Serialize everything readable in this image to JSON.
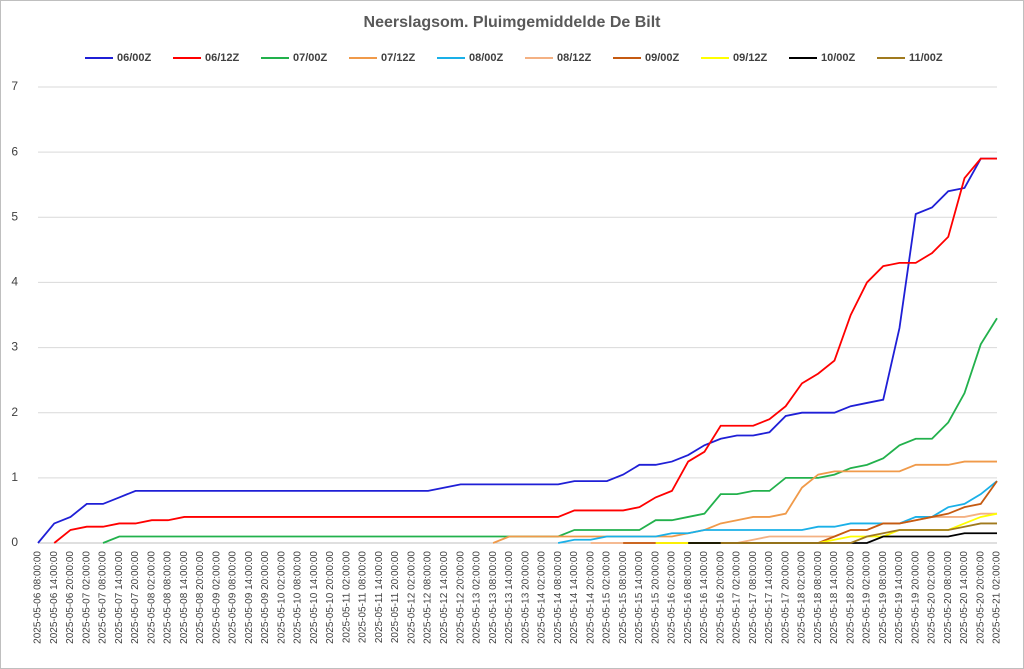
{
  "chart_data": {
    "type": "line",
    "title": "Neerslagsom. Pluimgemiddelde De Bilt",
    "categories": [
      "2025-05-06 08:00:00",
      "2025-05-06 14:00:00",
      "2025-05-06 20:00:00",
      "2025-05-07 02:00:00",
      "2025-05-07 08:00:00",
      "2025-05-07 14:00:00",
      "2025-05-07 20:00:00",
      "2025-05-08 02:00:00",
      "2025-05-08 08:00:00",
      "2025-05-08 14:00:00",
      "2025-05-08 20:00:00",
      "2025-05-09 02:00:00",
      "2025-05-09 08:00:00",
      "2025-05-09 14:00:00",
      "2025-05-09 20:00:00",
      "2025-05-10 02:00:00",
      "2025-05-10 08:00:00",
      "2025-05-10 14:00:00",
      "2025-05-10 20:00:00",
      "2025-05-11 02:00:00",
      "2025-05-11 08:00:00",
      "2025-05-11 14:00:00",
      "2025-05-11 20:00:00",
      "2025-05-12 02:00:00",
      "2025-05-12 08:00:00",
      "2025-05-12 14:00:00",
      "2025-05-12 20:00:00",
      "2025-05-13 02:00:00",
      "2025-05-13 08:00:00",
      "2025-05-13 14:00:00",
      "2025-05-13 20:00:00",
      "2025-05-14 02:00:00",
      "2025-05-14 08:00:00",
      "2025-05-14 14:00:00",
      "2025-05-14 20:00:00",
      "2025-05-15 02:00:00",
      "2025-05-15 08:00:00",
      "2025-05-15 14:00:00",
      "2025-05-15 20:00:00",
      "2025-05-16 02:00:00",
      "2025-05-16 08:00:00",
      "2025-05-16 14:00:00",
      "2025-05-16 20:00:00",
      "2025-05-17 02:00:00",
      "2025-05-17 08:00:00",
      "2025-05-17 14:00:00",
      "2025-05-17 20:00:00",
      "2025-05-18 02:00:00",
      "2025-05-18 08:00:00",
      "2025-05-18 14:00:00",
      "2025-05-18 20:00:00",
      "2025-05-19 02:00:00",
      "2025-05-19 08:00:00",
      "2025-05-19 14:00:00",
      "2025-05-19 20:00:00",
      "2025-05-20 02:00:00",
      "2025-05-20 08:00:00",
      "2025-05-20 14:00:00",
      "2025-05-20 20:00:00",
      "2025-05-21 02:00:00"
    ],
    "series": [
      {
        "name": "06/00Z",
        "color": "#1f1fd6",
        "values": [
          0,
          0.3,
          0.4,
          0.6,
          0.6,
          0.7,
          0.8,
          0.8,
          0.8,
          0.8,
          0.8,
          0.8,
          0.8,
          0.8,
          0.8,
          0.8,
          0.8,
          0.8,
          0.8,
          0.8,
          0.8,
          0.8,
          0.8,
          0.8,
          0.8,
          0.85,
          0.9,
          0.9,
          0.9,
          0.9,
          0.9,
          0.9,
          0.9,
          0.95,
          0.95,
          0.95,
          1.05,
          1.2,
          1.2,
          1.25,
          1.35,
          1.5,
          1.6,
          1.65,
          1.65,
          1.7,
          1.95,
          2.0,
          2.0,
          2.0,
          2.1,
          2.15,
          2.2,
          3.3,
          5.05,
          5.15,
          5.4,
          5.45,
          5.9,
          5.9
        ]
      },
      {
        "name": "06/12Z",
        "color": "#ff0000",
        "values": [
          null,
          0,
          0.2,
          0.25,
          0.25,
          0.3,
          0.3,
          0.35,
          0.35,
          0.4,
          0.4,
          0.4,
          0.4,
          0.4,
          0.4,
          0.4,
          0.4,
          0.4,
          0.4,
          0.4,
          0.4,
          0.4,
          0.4,
          0.4,
          0.4,
          0.4,
          0.4,
          0.4,
          0.4,
          0.4,
          0.4,
          0.4,
          0.4,
          0.5,
          0.5,
          0.5,
          0.5,
          0.55,
          0.7,
          0.8,
          1.25,
          1.4,
          1.8,
          1.8,
          1.8,
          1.9,
          2.1,
          2.45,
          2.6,
          2.8,
          3.5,
          4.0,
          4.25,
          4.3,
          4.3,
          4.45,
          4.7,
          5.6,
          5.9,
          5.9
        ]
      },
      {
        "name": "07/00Z",
        "color": "#22b14c",
        "values": [
          null,
          null,
          null,
          null,
          0,
          0.1,
          0.1,
          0.1,
          0.1,
          0.1,
          0.1,
          0.1,
          0.1,
          0.1,
          0.1,
          0.1,
          0.1,
          0.1,
          0.1,
          0.1,
          0.1,
          0.1,
          0.1,
          0.1,
          0.1,
          0.1,
          0.1,
          0.1,
          0.1,
          0.1,
          0.1,
          0.1,
          0.1,
          0.2,
          0.2,
          0.2,
          0.2,
          0.2,
          0.35,
          0.35,
          0.4,
          0.45,
          0.75,
          0.75,
          0.8,
          0.8,
          1.0,
          1.0,
          1.0,
          1.05,
          1.15,
          1.2,
          1.3,
          1.5,
          1.6,
          1.6,
          1.85,
          2.3,
          3.05,
          3.45
        ]
      },
      {
        "name": "07/12Z",
        "color": "#f09a4a",
        "values": [
          null,
          null,
          null,
          null,
          null,
          null,
          null,
          null,
          null,
          null,
          null,
          null,
          null,
          null,
          null,
          null,
          null,
          null,
          null,
          null,
          null,
          null,
          null,
          null,
          null,
          null,
          null,
          null,
          0,
          0.1,
          0.1,
          0.1,
          0.1,
          0.1,
          0.1,
          0.1,
          0.1,
          0.1,
          0.1,
          0.1,
          0.15,
          0.2,
          0.3,
          0.35,
          0.4,
          0.4,
          0.45,
          0.85,
          1.05,
          1.1,
          1.1,
          1.1,
          1.1,
          1.1,
          1.2,
          1.2,
          1.2,
          1.25,
          1.25,
          1.25
        ]
      },
      {
        "name": "08/00Z",
        "color": "#1ab0e8",
        "values": [
          null,
          null,
          null,
          null,
          null,
          null,
          null,
          null,
          null,
          null,
          null,
          null,
          null,
          null,
          null,
          null,
          null,
          null,
          null,
          null,
          null,
          null,
          null,
          null,
          null,
          null,
          null,
          null,
          null,
          null,
          null,
          null,
          0,
          0.05,
          0.05,
          0.1,
          0.1,
          0.1,
          0.1,
          0.15,
          0.15,
          0.2,
          0.2,
          0.2,
          0.2,
          0.2,
          0.2,
          0.2,
          0.25,
          0.25,
          0.3,
          0.3,
          0.3,
          0.3,
          0.4,
          0.4,
          0.55,
          0.6,
          0.75,
          0.95
        ]
      },
      {
        "name": "08/12Z",
        "color": "#f4b183",
        "values": [
          null,
          null,
          null,
          null,
          null,
          null,
          null,
          null,
          null,
          null,
          null,
          null,
          null,
          null,
          null,
          null,
          null,
          null,
          null,
          null,
          null,
          null,
          null,
          null,
          null,
          null,
          null,
          null,
          null,
          null,
          null,
          null,
          null,
          null,
          0,
          0,
          0,
          0,
          0,
          0,
          0,
          0,
          0,
          0,
          0.05,
          0.1,
          0.1,
          0.1,
          0.1,
          0.1,
          0.2,
          0.2,
          0.3,
          0.3,
          0.35,
          0.4,
          0.4,
          0.4,
          0.45,
          0.45
        ]
      },
      {
        "name": "09/00Z",
        "color": "#c55a11",
        "values": [
          null,
          null,
          null,
          null,
          null,
          null,
          null,
          null,
          null,
          null,
          null,
          null,
          null,
          null,
          null,
          null,
          null,
          null,
          null,
          null,
          null,
          null,
          null,
          null,
          null,
          null,
          null,
          null,
          null,
          null,
          null,
          null,
          null,
          null,
          null,
          null,
          0,
          0,
          0,
          0,
          0,
          0,
          0,
          0,
          0,
          0,
          0,
          0,
          0,
          0.1,
          0.2,
          0.2,
          0.3,
          0.3,
          0.35,
          0.4,
          0.45,
          0.55,
          0.6,
          0.95
        ]
      },
      {
        "name": "09/12Z",
        "color": "#ffff00",
        "values": [
          null,
          null,
          null,
          null,
          null,
          null,
          null,
          null,
          null,
          null,
          null,
          null,
          null,
          null,
          null,
          null,
          null,
          null,
          null,
          null,
          null,
          null,
          null,
          null,
          null,
          null,
          null,
          null,
          null,
          null,
          null,
          null,
          null,
          null,
          null,
          null,
          null,
          null,
          0,
          0,
          0,
          0,
          0,
          0,
          0,
          0,
          0,
          0,
          0,
          0.05,
          0.1,
          0.1,
          0.1,
          0.2,
          0.2,
          0.2,
          0.2,
          0.3,
          0.4,
          0.45
        ]
      },
      {
        "name": "10/00Z",
        "color": "#000000",
        "values": [
          null,
          null,
          null,
          null,
          null,
          null,
          null,
          null,
          null,
          null,
          null,
          null,
          null,
          null,
          null,
          null,
          null,
          null,
          null,
          null,
          null,
          null,
          null,
          null,
          null,
          null,
          null,
          null,
          null,
          null,
          null,
          null,
          null,
          null,
          null,
          null,
          null,
          null,
          null,
          null,
          0,
          0,
          0,
          0,
          0,
          0,
          0,
          0,
          0,
          0,
          0,
          0,
          0.1,
          0.1,
          0.1,
          0.1,
          0.1,
          0.15,
          0.15,
          0.15
        ]
      },
      {
        "name": "11/00Z",
        "color": "#a07a1e",
        "values": [
          null,
          null,
          null,
          null,
          null,
          null,
          null,
          null,
          null,
          null,
          null,
          null,
          null,
          null,
          null,
          null,
          null,
          null,
          null,
          null,
          null,
          null,
          null,
          null,
          null,
          null,
          null,
          null,
          null,
          null,
          null,
          null,
          null,
          null,
          null,
          null,
          null,
          null,
          null,
          null,
          null,
          null,
          0,
          0,
          0,
          0,
          0,
          0,
          0,
          0,
          0,
          0.1,
          0.15,
          0.2,
          0.2,
          0.2,
          0.2,
          0.25,
          0.3,
          0.3
        ]
      }
    ],
    "ylim": [
      0,
      7
    ],
    "yticks": [
      0,
      1,
      2,
      3,
      4,
      5,
      6,
      7
    ],
    "grid": true,
    "legend": "top"
  }
}
